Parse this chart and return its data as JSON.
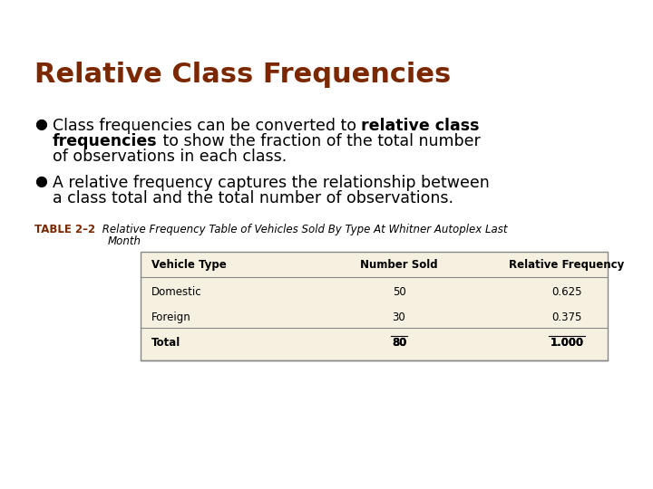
{
  "title": "Relative Class Frequencies",
  "title_color": "#7B2800",
  "title_fontsize": 22,
  "background_color": "#FFFFFF",
  "bullet_fontsize": 12.5,
  "table_caption_bold": "TABLE 2–2",
  "table_caption_color": "#7B2800",
  "table_caption_fontsize": 8.5,
  "table_headers": [
    "Vehicle Type",
    "Number Sold",
    "Relative Frequency"
  ],
  "table_rows": [
    [
      "Domestic",
      "50",
      "0.625"
    ],
    [
      "Foreign",
      "30",
      "0.375"
    ],
    [
      "Total",
      "80",
      "1.000"
    ]
  ],
  "table_header_fontsize": 8.5,
  "table_row_fontsize": 8.5,
  "table_bg": "#F5F0E0",
  "table_border_color": "#888888",
  "overline_values": [
    "80",
    "1.000"
  ]
}
